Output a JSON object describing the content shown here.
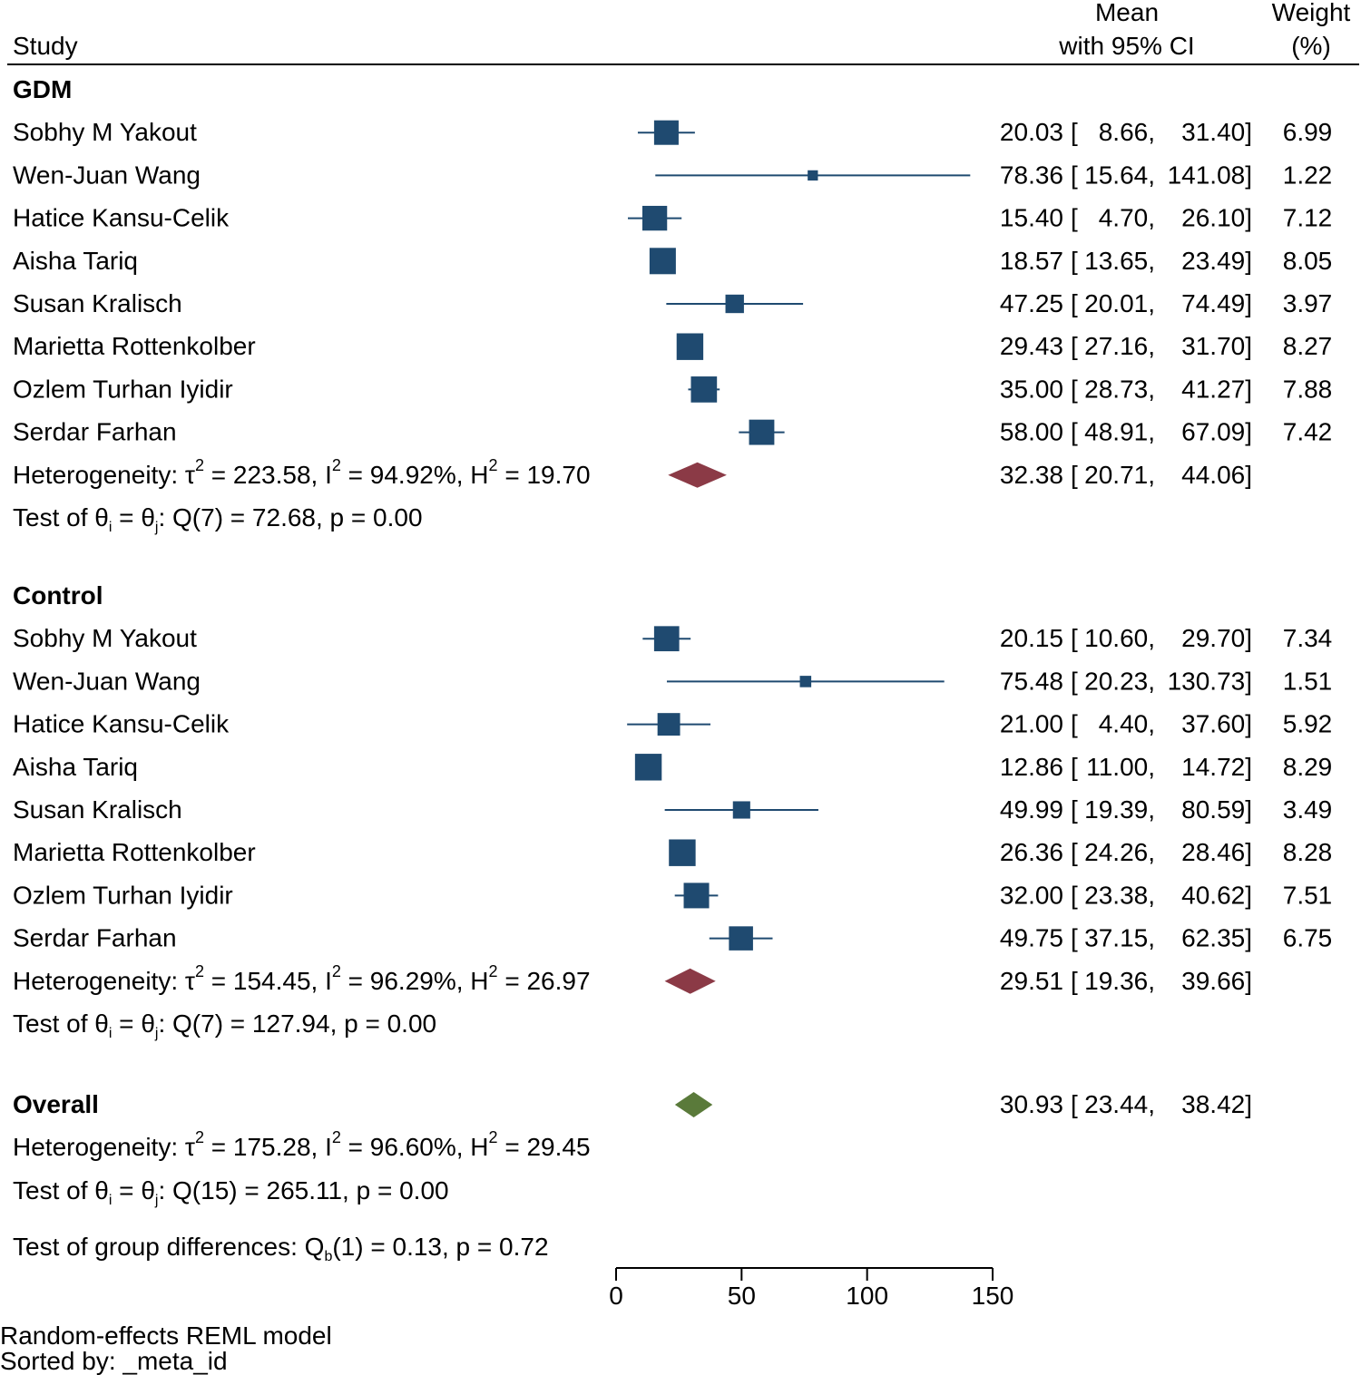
{
  "header": {
    "study": "Study",
    "mean_line1": "Mean",
    "mean_line2": "with 95% CI",
    "weight_line1": "Weight",
    "weight_line2": "(%)"
  },
  "colors": {
    "study_marker": "#1f4a70",
    "subgroup_diamond": "#8b3a46",
    "overall_diamond": "#5a7a3a"
  },
  "chart_data": {
    "type": "forest",
    "xlim": [
      0,
      150
    ],
    "xticks": [
      "0",
      "50",
      "100",
      "150"
    ],
    "groups": [
      {
        "name": "GDM",
        "studies": [
          {
            "label": "Sobhy M Yakout",
            "mean": 20.03,
            "lo": 8.66,
            "hi": 31.4,
            "mean_text": "20.03",
            "lo_text": "8.66,",
            "hi_text": "31.40]",
            "weight": "6.99"
          },
          {
            "label": "Wen-Juan Wang",
            "mean": 78.36,
            "lo": 15.64,
            "hi": 141.08,
            "mean_text": "78.36",
            "lo_text": "15.64,",
            "hi_text": "141.08]",
            "weight": "1.22"
          },
          {
            "label": "Hatice Kansu-Celik",
            "mean": 15.4,
            "lo": 4.7,
            "hi": 26.1,
            "mean_text": "15.40",
            "lo_text": "4.70,",
            "hi_text": "26.10]",
            "weight": "7.12"
          },
          {
            "label": "Aisha Tariq",
            "mean": 18.57,
            "lo": 13.65,
            "hi": 23.49,
            "mean_text": "18.57",
            "lo_text": "13.65,",
            "hi_text": "23.49]",
            "weight": "8.05"
          },
          {
            "label": "Susan Kralisch",
            "mean": 47.25,
            "lo": 20.01,
            "hi": 74.49,
            "mean_text": "47.25",
            "lo_text": "20.01,",
            "hi_text": "74.49]",
            "weight": "3.97"
          },
          {
            "label": "Marietta Rottenkolber",
            "mean": 29.43,
            "lo": 27.16,
            "hi": 31.7,
            "mean_text": "29.43",
            "lo_text": "27.16,",
            "hi_text": "31.70]",
            "weight": "8.27"
          },
          {
            "label": "Ozlem Turhan Iyidir",
            "mean": 35.0,
            "lo": 28.73,
            "hi": 41.27,
            "mean_text": "35.00",
            "lo_text": "28.73,",
            "hi_text": "41.27]",
            "weight": "7.88"
          },
          {
            "label": "Serdar Farhan",
            "mean": 58.0,
            "lo": 48.91,
            "hi": 67.09,
            "mean_text": "58.00",
            "lo_text": "48.91,",
            "hi_text": "67.09]",
            "weight": "7.42"
          }
        ],
        "summary": {
          "mean": 32.38,
          "lo": 20.71,
          "hi": 44.06,
          "mean_text": "32.38",
          "lo_text": "20.71,",
          "hi_text": "44.06]"
        },
        "heterogeneity": {
          "prefix": "Heterogeneity: τ",
          "tau2": " = 223.58, I",
          "i2": " = 94.92%, H",
          "h2": " = 19.70"
        },
        "test": {
          "a": "Test of θ",
          "b": " = θ",
          "c": ": Q(7) = 72.68, p = 0.00"
        }
      },
      {
        "name": "Control",
        "studies": [
          {
            "label": "Sobhy M Yakout",
            "mean": 20.15,
            "lo": 10.6,
            "hi": 29.7,
            "mean_text": "20.15",
            "lo_text": "10.60,",
            "hi_text": "29.70]",
            "weight": "7.34"
          },
          {
            "label": "Wen-Juan Wang",
            "mean": 75.48,
            "lo": 20.23,
            "hi": 130.73,
            "mean_text": "75.48",
            "lo_text": "20.23,",
            "hi_text": "130.73]",
            "weight": "1.51"
          },
          {
            "label": "Hatice Kansu-Celik",
            "mean": 21.0,
            "lo": 4.4,
            "hi": 37.6,
            "mean_text": "21.00",
            "lo_text": "4.40,",
            "hi_text": "37.60]",
            "weight": "5.92"
          },
          {
            "label": "Aisha Tariq",
            "mean": 12.86,
            "lo": 11.0,
            "hi": 14.72,
            "mean_text": "12.86",
            "lo_text": "11.00,",
            "hi_text": "14.72]",
            "weight": "8.29"
          },
          {
            "label": "Susan Kralisch",
            "mean": 49.99,
            "lo": 19.39,
            "hi": 80.59,
            "mean_text": "49.99",
            "lo_text": "19.39,",
            "hi_text": "80.59]",
            "weight": "3.49"
          },
          {
            "label": "Marietta Rottenkolber",
            "mean": 26.36,
            "lo": 24.26,
            "hi": 28.46,
            "mean_text": "26.36",
            "lo_text": "24.26,",
            "hi_text": "28.46]",
            "weight": "8.28"
          },
          {
            "label": "Ozlem Turhan Iyidir",
            "mean": 32.0,
            "lo": 23.38,
            "hi": 40.62,
            "mean_text": "32.00",
            "lo_text": "23.38,",
            "hi_text": "40.62]",
            "weight": "7.51"
          },
          {
            "label": "Serdar Farhan",
            "mean": 49.75,
            "lo": 37.15,
            "hi": 62.35,
            "mean_text": "49.75",
            "lo_text": "37.15,",
            "hi_text": "62.35]",
            "weight": "6.75"
          }
        ],
        "summary": {
          "mean": 29.51,
          "lo": 19.36,
          "hi": 39.66,
          "mean_text": "29.51",
          "lo_text": "19.36,",
          "hi_text": "39.66]"
        },
        "heterogeneity": {
          "prefix": "Heterogeneity: τ",
          "tau2": " = 154.45, I",
          "i2": " = 96.29%, H",
          "h2": " = 26.97"
        },
        "test": {
          "a": "Test of θ",
          "b": " = θ",
          "c": ": Q(7) = 127.94, p = 0.00"
        }
      }
    ],
    "overall": {
      "label": "Overall",
      "mean": 30.93,
      "lo": 23.44,
      "hi": 38.42,
      "mean_text": "30.93",
      "lo_text": "23.44,",
      "hi_text": "38.42]",
      "heterogeneity": {
        "prefix": "Heterogeneity: τ",
        "tau2": " = 175.28, I",
        "i2": " = 96.60%, H",
        "h2": " = 29.45"
      },
      "test": {
        "a": "Test of θ",
        "b": " = θ",
        "c": ": Q(15) = 265.11, p = 0.00"
      }
    },
    "group_test": {
      "a": "Test of group differences: Q",
      "b": "(1) = 0.13, p = 0.72"
    }
  },
  "footer": {
    "model": "Random-effects REML model",
    "sorted": "Sorted by: _meta_id"
  }
}
